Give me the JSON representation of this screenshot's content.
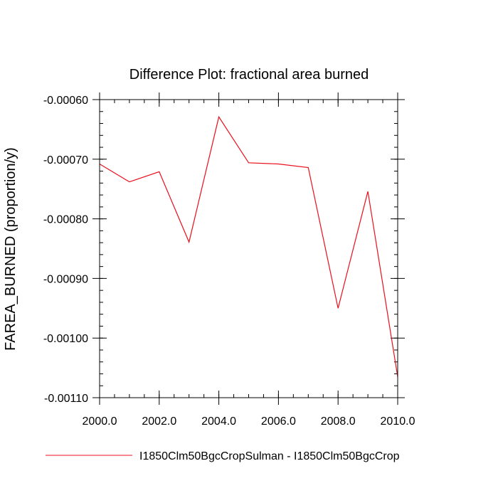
{
  "chart_data": {
    "type": "line",
    "title": "Difference Plot: fractional area burned",
    "xlabel": "",
    "ylabel": "FAREA_BURNED  (proportion/y)",
    "xlim": [
      2000,
      2010
    ],
    "ylim": [
      -0.0011,
      -0.0006
    ],
    "x_ticks": [
      2000,
      2002,
      2004,
      2006,
      2008,
      2010
    ],
    "x_tick_labels": [
      "2000.0",
      "2002.0",
      "2004.0",
      "2006.0",
      "2008.0",
      "2010.0"
    ],
    "y_ticks": [
      -0.0006,
      -0.0007,
      -0.0008,
      -0.0009,
      -0.001,
      -0.0011
    ],
    "y_tick_labels": [
      "-0.00060",
      "-0.00070",
      "-0.00080",
      "-0.00090",
      "-0.00100",
      "-0.00110"
    ],
    "grid": false,
    "legend_position": "bottom",
    "x": [
      2000,
      2001,
      2002,
      2003,
      2004,
      2005,
      2006,
      2007,
      2008,
      2009,
      2010
    ],
    "series": [
      {
        "name": "I1850Clm50BgcCropSulman - I1850Clm50BgcCrop",
        "color": "#e8101c",
        "values": [
          -0.000708,
          -0.000738,
          -0.000721,
          -0.000839,
          -0.000629,
          -0.000706,
          -0.000708,
          -0.000714,
          -0.00095,
          -0.000754,
          -0.001065
        ]
      }
    ]
  }
}
